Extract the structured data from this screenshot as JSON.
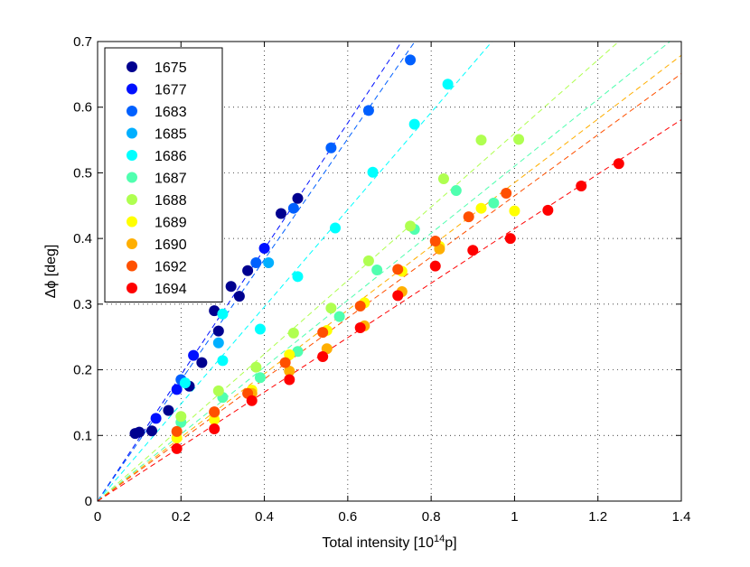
{
  "chart_data": {
    "type": "scatter",
    "title": "",
    "xlabel_main": "Total intensity [10",
    "xlabel_sup": "14",
    "xlabel_end": "p]",
    "ylabel": "Δϕ [deg]",
    "xlim": [
      0,
      1.4
    ],
    "ylim": [
      0,
      0.7
    ],
    "x_ticks": [
      "0",
      "0.2",
      "0.4",
      "0.6",
      "0.8",
      "1",
      "1.2",
      "1.4"
    ],
    "y_ticks": [
      "0",
      "0.1",
      "0.2",
      "0.3",
      "0.4",
      "0.5",
      "0.6",
      "0.7"
    ],
    "x_tick_values": [
      0,
      0.2,
      0.4,
      0.6,
      0.8,
      1.0,
      1.2,
      1.4
    ],
    "y_tick_values": [
      0,
      0.1,
      0.2,
      0.3,
      0.4,
      0.5,
      0.6,
      0.7
    ],
    "grid": true,
    "legend_position": "top-left",
    "series": [
      {
        "name": "1675",
        "color": "#00008f",
        "fit_slope": 0.0,
        "points": [
          [
            0.09,
            0.103
          ],
          [
            0.1,
            0.105
          ],
          [
            0.13,
            0.107
          ],
          [
            0.17,
            0.138
          ],
          [
            0.22,
            0.175
          ],
          [
            0.25,
            0.211
          ],
          [
            0.28,
            0.29
          ],
          [
            0.29,
            0.259
          ],
          [
            0.32,
            0.327
          ],
          [
            0.34,
            0.312
          ],
          [
            0.36,
            0.351
          ],
          [
            0.44,
            0.438
          ],
          [
            0.48,
            0.461
          ]
        ]
      },
      {
        "name": "1677",
        "color": "#0010ff",
        "fit_slope": 0.0,
        "points": [
          [
            0.14,
            0.126
          ],
          [
            0.19,
            0.17
          ],
          [
            0.23,
            0.222
          ],
          [
            0.4,
            0.385
          ]
        ]
      },
      {
        "name": "1683",
        "color": "#0060ff",
        "fit_slope": 0.92,
        "points": [
          [
            0.2,
            0.185
          ],
          [
            0.38,
            0.363
          ],
          [
            0.47,
            0.446
          ],
          [
            0.56,
            0.538
          ],
          [
            0.65,
            0.595
          ],
          [
            0.75,
            0.672
          ]
        ]
      },
      {
        "name": "1685",
        "color": "#00afff",
        "fit_slope": 0.0,
        "points": [
          [
            0.29,
            0.241
          ],
          [
            0.41,
            0.363
          ]
        ]
      },
      {
        "name": "1686",
        "color": "#00ffff",
        "fit_slope": 0.74,
        "points": [
          [
            0.21,
            0.18
          ],
          [
            0.3,
            0.214
          ],
          [
            0.3,
            0.285
          ],
          [
            0.39,
            0.262
          ],
          [
            0.48,
            0.342
          ],
          [
            0.57,
            0.416
          ],
          [
            0.66,
            0.501
          ],
          [
            0.76,
            0.574
          ],
          [
            0.84,
            0.635
          ]
        ]
      },
      {
        "name": "1687",
        "color": "#50ffaf",
        "fit_slope": 0.51,
        "points": [
          [
            0.2,
            0.12
          ],
          [
            0.3,
            0.158
          ],
          [
            0.39,
            0.188
          ],
          [
            0.48,
            0.228
          ],
          [
            0.58,
            0.281
          ],
          [
            0.67,
            0.352
          ],
          [
            0.76,
            0.414
          ],
          [
            0.86,
            0.473
          ],
          [
            0.95,
            0.454
          ]
        ]
      },
      {
        "name": "1688",
        "color": "#afff50",
        "fit_slope": 0.56,
        "points": [
          [
            0.2,
            0.129
          ],
          [
            0.29,
            0.168
          ],
          [
            0.38,
            0.204
          ],
          [
            0.47,
            0.256
          ],
          [
            0.56,
            0.294
          ],
          [
            0.65,
            0.366
          ],
          [
            0.75,
            0.419
          ],
          [
            0.83,
            0.491
          ],
          [
            0.92,
            0.55
          ],
          [
            1.01,
            0.551
          ]
        ]
      },
      {
        "name": "1689",
        "color": "#ffff00",
        "fit_slope": 0.0,
        "points": [
          [
            0.19,
            0.096
          ],
          [
            0.28,
            0.124
          ],
          [
            0.37,
            0.169
          ],
          [
            0.46,
            0.223
          ],
          [
            0.55,
            0.26
          ],
          [
            0.64,
            0.302
          ],
          [
            0.73,
            0.35
          ],
          [
            0.82,
            0.388
          ],
          [
            0.92,
            0.446
          ],
          [
            1.0,
            0.442
          ]
        ]
      },
      {
        "name": "1690",
        "color": "#ffaf00",
        "fit_slope": 0.0,
        "points": [
          [
            0.28,
            0.135
          ],
          [
            0.37,
            0.164
          ],
          [
            0.46,
            0.198
          ],
          [
            0.55,
            0.232
          ],
          [
            0.64,
            0.267
          ],
          [
            0.73,
            0.319
          ],
          [
            0.82,
            0.384
          ]
        ]
      },
      {
        "name": "1692",
        "color": "#ff5000",
        "fit_slope": 0.465,
        "points": [
          [
            0.19,
            0.106
          ],
          [
            0.28,
            0.136
          ],
          [
            0.36,
            0.164
          ],
          [
            0.45,
            0.211
          ],
          [
            0.54,
            0.257
          ],
          [
            0.63,
            0.297
          ],
          [
            0.72,
            0.353
          ],
          [
            0.81,
            0.396
          ],
          [
            0.89,
            0.433
          ],
          [
            0.98,
            0.469
          ]
        ]
      },
      {
        "name": "1694",
        "color": "#ff0000",
        "fit_slope": 0.415,
        "points": [
          [
            0.19,
            0.08
          ],
          [
            0.28,
            0.11
          ],
          [
            0.37,
            0.153
          ],
          [
            0.46,
            0.185
          ],
          [
            0.54,
            0.22
          ],
          [
            0.63,
            0.264
          ],
          [
            0.72,
            0.313
          ],
          [
            0.81,
            0.358
          ],
          [
            0.9,
            0.382
          ],
          [
            0.99,
            0.4
          ],
          [
            1.08,
            0.443
          ],
          [
            1.16,
            0.48
          ],
          [
            1.25,
            0.514
          ]
        ]
      }
    ],
    "fit_lines": [
      {
        "color": "#0010ff",
        "slope": 0.96
      },
      {
        "color": "#0060ff",
        "slope": 0.92
      },
      {
        "color": "#00ffff",
        "slope": 0.74
      },
      {
        "color": "#afff50",
        "slope": 0.56
      },
      {
        "color": "#50ffaf",
        "slope": 0.51
      },
      {
        "color": "#ffaf00",
        "slope": 0.485
      },
      {
        "color": "#ff5000",
        "slope": 0.465
      },
      {
        "color": "#ff0000",
        "slope": 0.415
      }
    ]
  }
}
